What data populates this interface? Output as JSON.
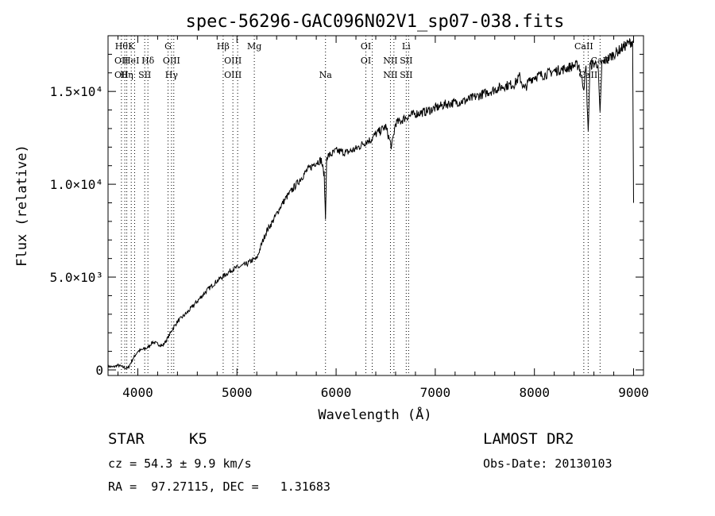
{
  "chart_data": {
    "type": "line",
    "title": "spec-56296-GAC096N02V1_sp07-038.fits",
    "xlabel": "Wavelength (Å)",
    "ylabel": "Flux (relative)",
    "xlim": [
      3700,
      9100
    ],
    "ylim": [
      -300,
      18000
    ],
    "x_ticks": [
      4000,
      5000,
      6000,
      7000,
      8000,
      9000
    ],
    "x_tick_labels": [
      "4000",
      "5000",
      "6000",
      "7000",
      "8000",
      "9000"
    ],
    "y_ticks": [
      0,
      5000,
      10000,
      15000
    ],
    "y_tick_labels": [
      "0",
      "5.0×10³",
      "1.0×10⁴",
      "1.5×10⁴"
    ],
    "grid": false,
    "series": [
      {
        "x": [
          3700,
          3750,
          3800,
          3850,
          3900,
          3950,
          4000,
          4050,
          4100,
          4150,
          4200,
          4250,
          4300,
          4350,
          4400,
          4500,
          4600,
          4700,
          4800,
          4900,
          4950,
          5000,
          5050,
          5100,
          5150,
          5200,
          5250,
          5300,
          5350,
          5400,
          5450,
          5500,
          5600,
          5700,
          5800,
          5850,
          5880,
          5893,
          5905,
          5950,
          6000,
          6100,
          6200,
          6300,
          6350,
          6400,
          6450,
          6500,
          6560,
          6600,
          6650,
          6700,
          6800,
          6900,
          7000,
          7100,
          7200,
          7300,
          7400,
          7500,
          7600,
          7700,
          7800,
          7850,
          7900,
          7950,
          8000,
          8100,
          8200,
          8300,
          8400,
          8450,
          8498,
          8520,
          8542,
          8560,
          8600,
          8640,
          8662,
          8680,
          8700,
          8750,
          8800,
          8850,
          8900,
          8950,
          8990,
          9000
        ],
        "y": [
          200,
          150,
          250,
          150,
          80,
          600,
          1000,
          1100,
          1200,
          1500,
          1400,
          1300,
          1700,
          2200,
          2600,
          3100,
          3700,
          4300,
          4800,
          5200,
          5400,
          5500,
          5600,
          5700,
          5900,
          6000,
          6800,
          7500,
          7900,
          8400,
          8900,
          9300,
          10000,
          10700,
          11200,
          11300,
          10500,
          8100,
          11500,
          11600,
          11800,
          11700,
          11900,
          12300,
          12400,
          12700,
          12900,
          13100,
          12000,
          13300,
          13400,
          13600,
          13800,
          13900,
          14100,
          14300,
          14400,
          14500,
          14700,
          14900,
          15100,
          15300,
          15400,
          15800,
          15100,
          15600,
          15800,
          15900,
          16100,
          16200,
          16400,
          16400,
          15200,
          16300,
          12700,
          16400,
          16500,
          16500,
          13700,
          16500,
          16600,
          16800,
          17000,
          17200,
          17400,
          17600,
          17700,
          9000
        ]
      }
    ],
    "spectral_lines": [
      {
        "wavelength": 3835,
        "labels": [
          "Hθ",
          "OII",
          "OII"
        ]
      },
      {
        "wavelength": 3869,
        "labels": [
          "",
          "",
          ""
        ]
      },
      {
        "wavelength": 3889,
        "labels": [
          "",
          "",
          "Hη"
        ]
      },
      {
        "wavelength": 3934,
        "labels": [
          "K",
          "HeI",
          ""
        ]
      },
      {
        "wavelength": 3968,
        "labels": [
          "",
          "",
          ""
        ]
      },
      {
        "wavelength": 4070,
        "labels": [
          "",
          "",
          "SII"
        ]
      },
      {
        "wavelength": 4102,
        "labels": [
          "",
          "Hδ",
          ""
        ]
      },
      {
        "wavelength": 4305,
        "labels": [
          "G",
          "",
          ""
        ]
      },
      {
        "wavelength": 4340,
        "labels": [
          "",
          "OIII",
          "Hγ"
        ]
      },
      {
        "wavelength": 4363,
        "labels": [
          "",
          "",
          ""
        ]
      },
      {
        "wavelength": 4861,
        "labels": [
          "Hβ",
          "",
          ""
        ]
      },
      {
        "wavelength": 4959,
        "labels": [
          "",
          "OIII",
          "OIII"
        ]
      },
      {
        "wavelength": 5007,
        "labels": [
          "",
          "",
          ""
        ]
      },
      {
        "wavelength": 5175,
        "labels": [
          "Mg",
          "",
          ""
        ]
      },
      {
        "wavelength": 5893,
        "labels": [
          "",
          "",
          "Na"
        ]
      },
      {
        "wavelength": 6300,
        "labels": [
          "OI",
          "OI",
          ""
        ]
      },
      {
        "wavelength": 6364,
        "labels": [
          "",
          "",
          ""
        ]
      },
      {
        "wavelength": 6548,
        "labels": [
          "",
          "NII",
          "NII"
        ]
      },
      {
        "wavelength": 6583,
        "labels": [
          "",
          "",
          ""
        ]
      },
      {
        "wavelength": 6707,
        "labels": [
          "Li",
          "SII",
          "SII"
        ]
      },
      {
        "wavelength": 6731,
        "labels": [
          "",
          "",
          ""
        ]
      },
      {
        "wavelength": 8498,
        "labels": [
          "CaII",
          "",
          ""
        ]
      },
      {
        "wavelength": 8542,
        "labels": [
          "",
          "",
          "CaII"
        ]
      },
      {
        "wavelength": 8662,
        "labels": [
          "",
          "CaII",
          ""
        ]
      }
    ]
  },
  "info": {
    "object_type": "STAR",
    "subclass": "K5",
    "cz_line": "cz = 54.3 ± 9.9 km/s",
    "coords_line": "RA =  97.27115, DEC =   1.31683",
    "survey": "LAMOST DR2",
    "obs_date": "Obs-Date: 20130103"
  }
}
